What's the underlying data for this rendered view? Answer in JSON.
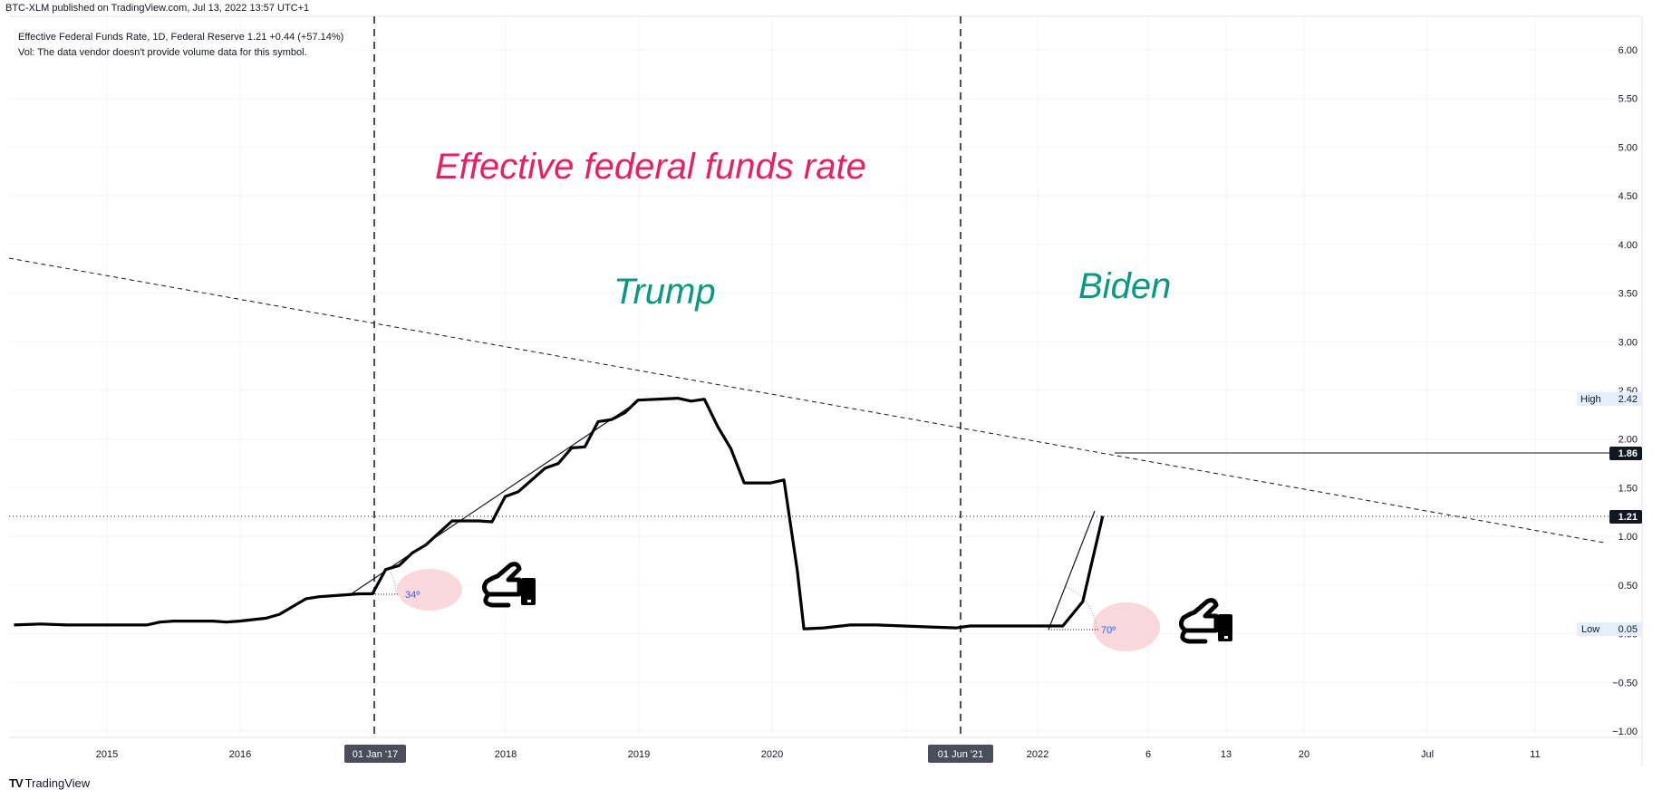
{
  "header": {
    "publish_line": "BTC-XLM published on TradingView.com, Jul 13, 2022 13:57 UTC+1",
    "legend_line1": "Effective Federal Funds Rate, 1D, Federal Reserve  1.21  +0.44 (+57.14%)",
    "legend_line2": "Vol: The data vendor doesn't provide volume data for this symbol."
  },
  "footer": {
    "logo_text": "TradingView",
    "logo_icon": "tradingview-logo-icon"
  },
  "annotations": {
    "title": "Effective federal funds rate",
    "label_trump": "Trump",
    "label_biden": "Biden",
    "angle_left": "34º",
    "angle_right": "70º",
    "vline_left_label": "01 Jan '17",
    "vline_right_label": "01 Jun '21",
    "high_label": "High",
    "high_value": "2.42",
    "low_label": "Low",
    "low_value": "0.05",
    "hline_value": "1.86",
    "last_value": "1.21",
    "hand_icon": "pointing-hand-icon",
    "colors": {
      "title": "#e91e63",
      "names": "#089981",
      "angle_fill": "#f8c8cc",
      "angle_text": "#2962ff"
    }
  },
  "chart_data": {
    "type": "line",
    "y_ticks": [
      "6.00",
      "5.50",
      "5.00",
      "4.50",
      "4.00",
      "3.50",
      "3.00",
      "2.50",
      "2.00",
      "1.50",
      "1.00",
      "0.50",
      "0.00",
      "−0.50",
      "−1.00"
    ],
    "x_ticks": [
      "2015",
      "2016",
      "2017",
      "2018",
      "2019",
      "2020",
      "2021",
      "2022",
      "6",
      "13",
      "20",
      "Jul",
      "11"
    ],
    "ylim": [
      -1.0,
      6.0
    ],
    "grid": true,
    "series": [
      {
        "values": [
          [
            2014.3,
            0.09
          ],
          [
            2014.5,
            0.1
          ],
          [
            2014.7,
            0.09
          ],
          [
            2015.0,
            0.09
          ],
          [
            2015.3,
            0.09
          ],
          [
            2015.4,
            0.12
          ],
          [
            2015.5,
            0.13
          ],
          [
            2015.8,
            0.13
          ],
          [
            2015.9,
            0.12
          ],
          [
            2016.0,
            0.13
          ],
          [
            2016.2,
            0.16
          ],
          [
            2016.3,
            0.2
          ],
          [
            2016.5,
            0.36
          ],
          [
            2016.6,
            0.38
          ],
          [
            2016.8,
            0.4
          ],
          [
            2016.9,
            0.41
          ],
          [
            2017.0,
            0.41
          ],
          [
            2017.1,
            0.66
          ],
          [
            2017.2,
            0.7
          ],
          [
            2017.3,
            0.83
          ],
          [
            2017.4,
            0.91
          ],
          [
            2017.6,
            1.16
          ],
          [
            2017.8,
            1.16
          ],
          [
            2017.9,
            1.15
          ],
          [
            2018.0,
            1.41
          ],
          [
            2018.1,
            1.46
          ],
          [
            2018.3,
            1.7
          ],
          [
            2018.4,
            1.75
          ],
          [
            2018.5,
            1.91
          ],
          [
            2018.6,
            1.92
          ],
          [
            2018.7,
            2.18
          ],
          [
            2018.8,
            2.2
          ],
          [
            2018.9,
            2.27
          ],
          [
            2019.0,
            2.4
          ],
          [
            2019.3,
            2.42
          ],
          [
            2019.4,
            2.39
          ],
          [
            2019.5,
            2.41
          ],
          [
            2019.6,
            2.13
          ],
          [
            2019.7,
            1.9
          ],
          [
            2019.8,
            1.55
          ],
          [
            2019.9,
            1.55
          ],
          [
            2020.0,
            1.55
          ],
          [
            2020.1,
            1.58
          ],
          [
            2020.2,
            0.65
          ],
          [
            2020.25,
            0.05
          ],
          [
            2020.4,
            0.06
          ],
          [
            2020.6,
            0.09
          ],
          [
            2020.8,
            0.09
          ],
          [
            2021.0,
            0.08
          ],
          [
            2021.2,
            0.07
          ],
          [
            2021.4,
            0.06
          ],
          [
            2021.5,
            0.08
          ],
          [
            2021.7,
            0.08
          ],
          [
            2021.9,
            0.08
          ],
          [
            2022.1,
            0.08
          ],
          [
            2022.2,
            0.08
          ],
          [
            2022.35,
            0.33
          ],
          [
            2022.5,
            1.21
          ]
        ]
      }
    ],
    "x_axis_range": [
      2014.3,
      2022.5
    ],
    "trendline_dashed": {
      "from": [
        2014.3,
        3.85
      ],
      "to": [
        2022.5,
        0.95
      ]
    }
  }
}
